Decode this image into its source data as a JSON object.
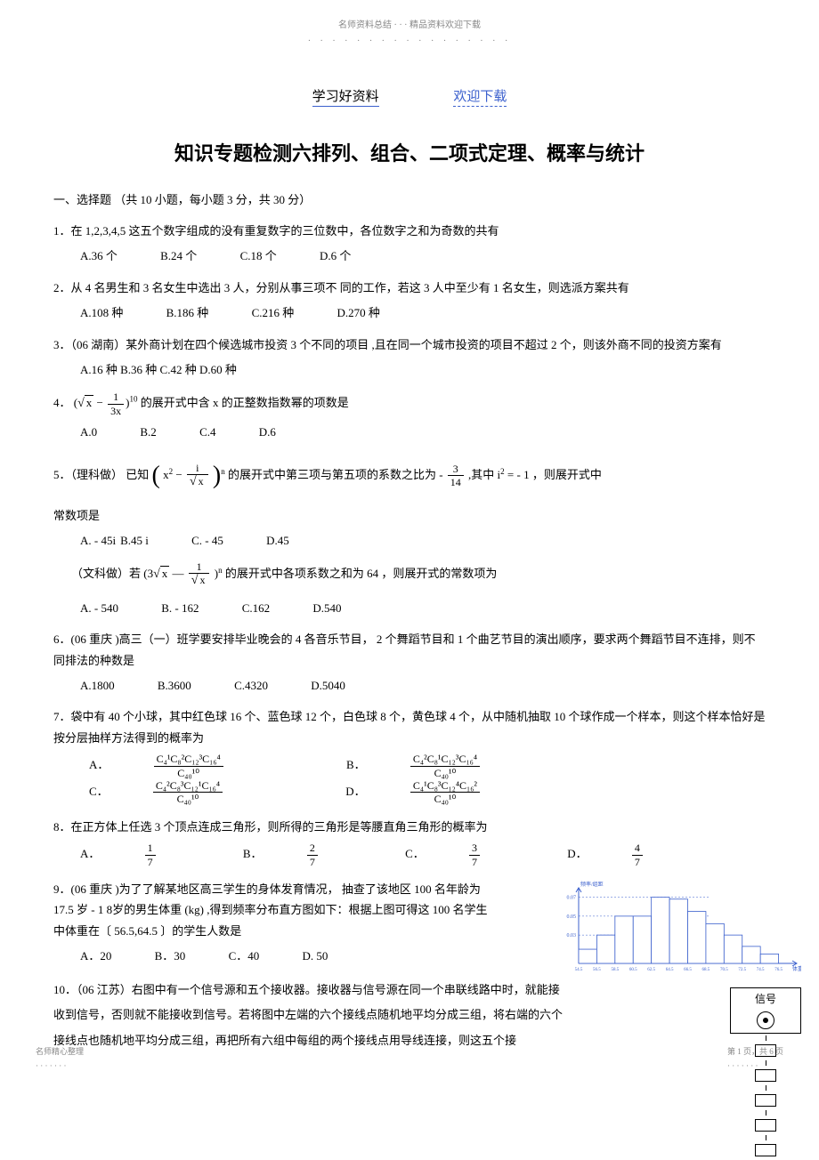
{
  "top_header": {
    "text": "名师资料总结 · · · 精品资料欢迎下载",
    "dots": "· · · · · · · · · · · · · · · · ·"
  },
  "sub_header": {
    "left": "学习好资料",
    "right": "欢迎下载"
  },
  "main_title": "知识专题检测六排列、组合、二项式定理、概率与统计",
  "section1": "一、选择题 （共 10 小题，每小题 3 分，共 30 分）",
  "q1": {
    "text": "1．在 1,2,3,4,5 这五个数字组成的没有重复数字的三位数中，各位数字之和为奇数的共有",
    "opts": [
      "A.36 个",
      "B.24 个",
      "C.18 个",
      "D.6 个"
    ]
  },
  "q2": {
    "text": "2．从 4 名男生和 3 名女生中选出 3 人，分别从事三项不 同的工作，若这 3 人中至少有 1 名女生，则选派方案共有",
    "opts": [
      "A.108 种",
      "B.186 种",
      "C.216 种",
      "D.270 种"
    ]
  },
  "q3": {
    "text": "3．（06 湖南）某外商计划在四个候选城市投资 3 个不同的项目 ,且在同一个城市投资的项目不超过 2 个，则该外商不同的投资方案有",
    "opts_line": "A.16 种 B.36 种 C.42 种 D.60 种"
  },
  "q4": {
    "prefix": "4． ",
    "suffix": " 的展开式中含 x 的正整数指数幂的项数是",
    "expr_sqrt": "x",
    "expr_frac_num": "1",
    "expr_frac_den": "3x",
    "expr_power": "10",
    "opts": [
      "A.0",
      "B.2",
      "C.4",
      "D.6"
    ]
  },
  "q5": {
    "prefix": "5．（理科做） 已知 ",
    "mid": " 的展开式中第三项与第五项的系数之比为 - ",
    "frac_num": "3",
    "frac_den": "14",
    "suffix": " ,其中 i",
    "suffix2": " = - 1 ，则展开式中",
    "line2": "常数项是",
    "expr_x2": "x",
    "expr_i": "i",
    "expr_sqrtx": "x",
    "expr_n": "n",
    "sq": "2",
    "opts": [
      "A. - 45i",
      "B.45 i",
      "C. - 45",
      "D.45"
    ],
    "wen_prefix": "（文科做）若 ",
    "wen_expr_3": "3",
    "wen_expr_sqrt": "x",
    "wen_expr_frac_num": "1",
    "wen_expr_frac_den_sqrt": "x",
    "wen_expr_n": "n",
    "wen_suffix": " 的展开式中各项系数之和为 64 ，则展开式的常数项为",
    "wen_opts": [
      "A. - 540",
      "B. - 162",
      "C.162",
      "D.540"
    ]
  },
  "q6": {
    "text": "6．(06 重庆 )高三（一）班学要安排毕业晚会的 4 各音乐节目， 2 个舞蹈节目和 1 个曲艺节目的演出顺序，要求两个舞蹈节目不连排，则不同排法的种数是",
    "opts": [
      "A.1800",
      "B.3600",
      "C.4320",
      "D.5040"
    ]
  },
  "q7": {
    "text": "7．袋中有 40 个小球，其中红色球 16 个、蓝色球 12 个，白色球 8 个，黄色球 4 个，从中随机抽取 10 个球作成一个样本，则这个样本恰好是按分层抽样方法得到的概率为",
    "opt_label_a": "A．",
    "opt_label_b": "B．",
    "opt_label_c": "C．",
    "opt_label_d": "D．",
    "combs": {
      "a": [
        "C₄¹C₈²C₁₂³C₁₆⁴",
        "C₄₀¹⁰"
      ],
      "b": [
        "C₄²C₈¹C₁₂³C₁₆⁴",
        "C₄₀¹⁰"
      ],
      "c": [
        "C₄²C₈³C₁₂¹C₁₆⁴",
        "C₄₀¹⁰"
      ],
      "d": [
        "C₄¹C₈³C₁₂⁴C₁₆²",
        "C₄₀¹⁰"
      ]
    }
  },
  "q8": {
    "text": "8．在正方体上任选 3 个顶点连成三角形，则所得的三角形是等腰直角三角形的概率为",
    "opts_prefix": [
      "A．",
      "B．",
      "C．",
      "D．"
    ],
    "opts_num": [
      "1",
      "2",
      "3",
      "4"
    ],
    "opts_den": [
      "7",
      "7",
      "7",
      "7"
    ]
  },
  "q9": {
    "text": "9．(06 重庆 )为了了解某地区高三学生的身体发育情况， 抽查了该地区 100 名年龄为 17.5 岁 - 1 8岁的男生体重 (kg) ,得到频率分布直方图如下：根据上图可得这 100 名学生中体重在〔 56.5,64.5 〕的学生人数是",
    "opts": [
      "A．20",
      "B．30",
      "C．40",
      "D. 50"
    ],
    "histogram": {
      "ylabel": "频率/组距",
      "xlabel": "体重(kg)",
      "yticks": [
        "0.03",
        "0.05",
        "0.07"
      ],
      "ytick_vals": [
        0.03,
        0.05,
        0.07
      ],
      "xticks": [
        "54.5",
        "56.5",
        "58.5",
        "60.5",
        "62.5",
        "64.5",
        "66.5",
        "68.5",
        "70.5",
        "72.5",
        "74.5",
        "76.5"
      ],
      "bars": [
        0.015,
        0.03,
        0.05,
        0.05,
        0.07,
        0.068,
        0.055,
        0.042,
        0.03,
        0.018,
        0.01
      ],
      "ymax": 0.08,
      "bar_color": "#ffffff",
      "border_color": "#3a5fcd",
      "grid_color": "#3a5fcd",
      "axis_color": "#3a5fcd",
      "label_color": "#3a5fcd",
      "label_fontsize": 6
    }
  },
  "q10": {
    "text": "10．（06 江苏）右图中有一个信号源和五个接收器。接收器与信号源在同一个串联线路中时，就能接收到信号，否则就不能接收到信号。若将图中左端的六个接线点随机地平均分成三组，将右端的六个接线点也随机地平均分成三组，再把所有六组中每组的两个接线点用导线连接，则这五个接",
    "diagram": {
      "signal_label": "信号",
      "receiver_count": 5
    }
  },
  "footer": {
    "left": "名师精心整理",
    "left_dots": "· · · · · · ·",
    "right": "第 1 页，共 6 页",
    "right_dots": "· · · · · · ·"
  }
}
